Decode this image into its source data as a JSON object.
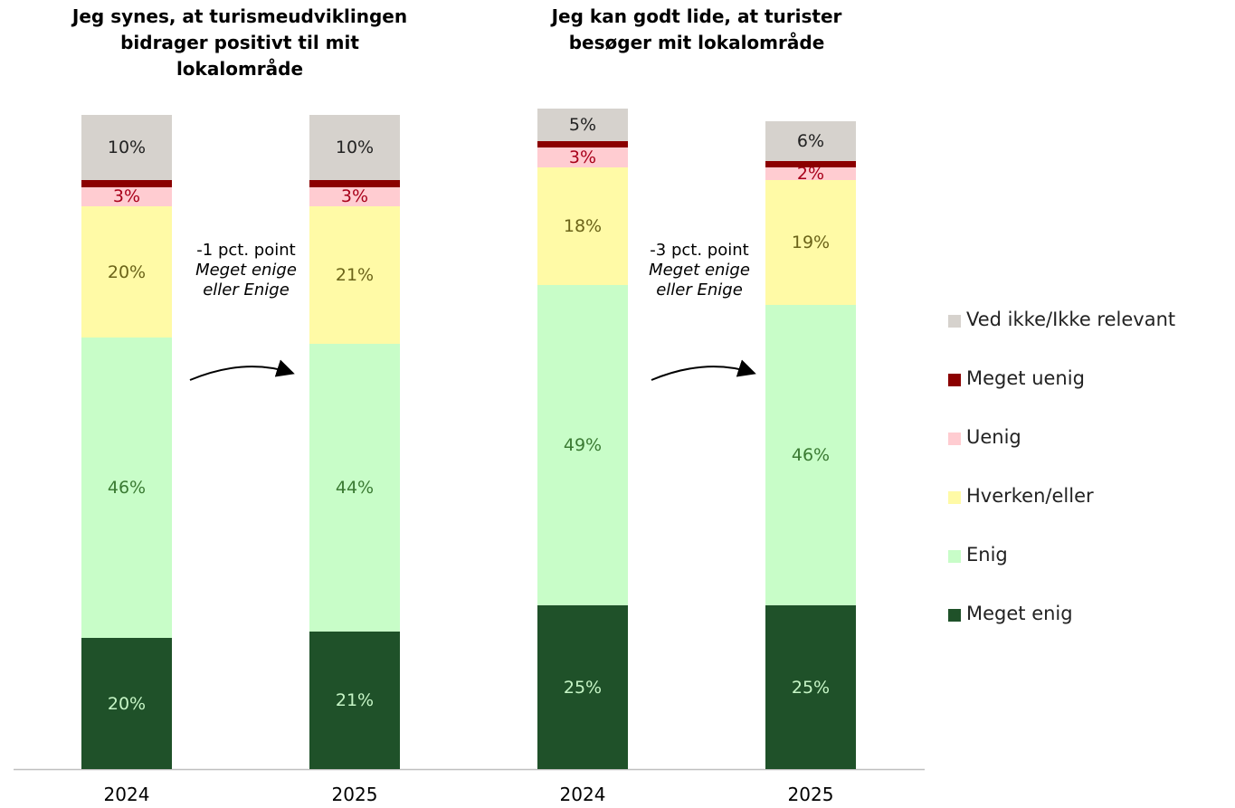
{
  "chart_data": [
    {
      "type": "bar",
      "stacked": true,
      "title": "Jeg synes, at turismeudviklingen bidrager positivt til mit lokalområde",
      "categories": [
        "2024",
        "2025"
      ],
      "ylim": [
        0,
        100
      ],
      "annotation": "-1 pct. point",
      "annotation_note": "Meget enige eller Enige",
      "series": [
        {
          "name": "Meget enig",
          "color": "#1f5129",
          "label_color": "#c6f5c6",
          "values": [
            20,
            21
          ],
          "value_labels": [
            "20%",
            "21%"
          ]
        },
        {
          "name": "Enig",
          "color": "#c8fdc8",
          "label_color": "#3a7a32",
          "values": [
            46,
            44
          ],
          "value_labels": [
            "46%",
            "44%"
          ]
        },
        {
          "name": "Hverken/eller",
          "color": "#fffaa6",
          "label_color": "#6b6318",
          "values": [
            20,
            21
          ],
          "value_labels": [
            "20%",
            "21%"
          ]
        },
        {
          "name": "Uenig",
          "color": "#ffccd1",
          "label_color": "#a8001a",
          "values": [
            3,
            3
          ],
          "value_labels": [
            "3%",
            "3%"
          ]
        },
        {
          "name": "Meget uenig",
          "color": "#8b0000",
          "label_color": "#ffffff",
          "values": [
            1,
            1
          ],
          "value_labels": [
            null,
            null
          ]
        },
        {
          "name": "Ved ikke/Ikke relevant",
          "color": "#d6d2cd",
          "label_color": "#222222",
          "values": [
            10,
            10
          ],
          "value_labels": [
            "10%",
            "10%"
          ]
        }
      ]
    },
    {
      "type": "bar",
      "stacked": true,
      "title": "Jeg kan godt lide, at turister besøger mit lokalområde",
      "categories": [
        "2024",
        "2025"
      ],
      "ylim": [
        0,
        100
      ],
      "annotation": "-3 pct. point",
      "annotation_note": "Meget enige eller Enige",
      "series": [
        {
          "name": "Meget enig",
          "color": "#1f5129",
          "label_color": "#c6f5c6",
          "values": [
            25,
            25
          ],
          "value_labels": [
            "25%",
            "25%"
          ]
        },
        {
          "name": "Enig",
          "color": "#c8fdc8",
          "label_color": "#3a7a32",
          "values": [
            49,
            46
          ],
          "value_labels": [
            "49%",
            "46%"
          ]
        },
        {
          "name": "Hverken/eller",
          "color": "#fffaa6",
          "label_color": "#6b6318",
          "values": [
            18,
            19
          ],
          "value_labels": [
            "18%",
            "19%"
          ]
        },
        {
          "name": "Uenig",
          "color": "#ffccd1",
          "label_color": "#a8001a",
          "values": [
            3,
            2
          ],
          "value_labels": [
            "3%",
            "2%"
          ]
        },
        {
          "name": "Meget uenig",
          "color": "#8b0000",
          "label_color": "#ffffff",
          "values": [
            1,
            1
          ],
          "value_labels": [
            null,
            null
          ]
        },
        {
          "name": "Ved ikke/Ikke relevant",
          "color": "#d6d2cd",
          "label_color": "#222222",
          "values": [
            5,
            6
          ],
          "value_labels": [
            "5%",
            "6%"
          ]
        }
      ]
    }
  ]
}
